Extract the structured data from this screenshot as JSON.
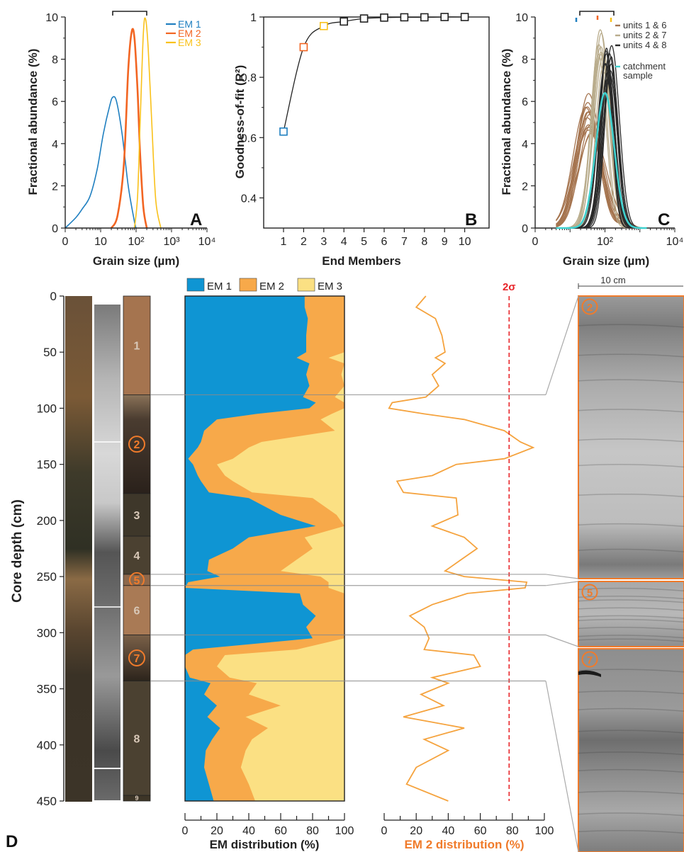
{
  "colors": {
    "em1": "#1f7fc0",
    "em2": "#f26522",
    "em3": "#f9c11a",
    "em1_fill": "#0f95d3",
    "em2_fill": "#f7a94a",
    "em3_fill": "#fbe083",
    "unit_brown": "#a5744f",
    "unit_dark": "#3e372a",
    "sigma": "#e8262b",
    "em2_curve": "#f5a33e",
    "frame_orange": "#f07b2b",
    "cyan": "#3fd1cf"
  },
  "chart_data": [
    {
      "panel": "A",
      "type": "line",
      "xscale": "log",
      "xlabel": "Grain size (µm)",
      "ylabel": "Fractional abundance (%)",
      "xlim": [
        1,
        10000
      ],
      "ylim": [
        0,
        10
      ],
      "xticks": [
        "0",
        "10",
        "10²",
        "10³",
        "10⁴"
      ],
      "yticks": [
        "0",
        "2",
        "4",
        "6",
        "8",
        "10"
      ],
      "series": [
        {
          "name": "EM 1",
          "x": [
            1,
            2,
            3,
            5,
            8,
            12,
            18,
            22,
            28,
            40,
            60,
            90,
            100
          ],
          "y": [
            0,
            0.5,
            0.9,
            1.5,
            2.8,
            4.5,
            5.8,
            6.2,
            6.0,
            4.5,
            2.0,
            0.3,
            0
          ]
        },
        {
          "name": "EM 2",
          "x": [
            20,
            30,
            45,
            60,
            75,
            90,
            110,
            130,
            160,
            200
          ],
          "y": [
            0,
            0.6,
            3.0,
            7.5,
            9.3,
            9.0,
            6.5,
            3.5,
            1.0,
            0
          ]
        },
        {
          "name": "EM 3",
          "x": [
            90,
            110,
            130,
            160,
            185,
            220,
            280,
            360,
            500
          ],
          "y": [
            0,
            1.5,
            5.0,
            9.2,
            9.9,
            8.5,
            4.8,
            1.3,
            0
          ]
        }
      ]
    },
    {
      "panel": "B",
      "type": "line",
      "xlabel": "End Members",
      "ylabel": "Goodness-of-fit (R²)",
      "xlim": [
        0,
        11
      ],
      "ylim": [
        0.3,
        1
      ],
      "yticks": [
        "0.4",
        "0.6",
        "0.8",
        "1"
      ],
      "x": [
        1,
        2,
        3,
        4,
        5,
        6,
        7,
        8,
        9,
        10
      ],
      "y": [
        0.62,
        0.9,
        0.97,
        0.985,
        0.995,
        0.998,
        0.999,
        0.999,
        1.0,
        1.0
      ],
      "highlight": {
        "1": "#1f7fc0",
        "2": "#f26522",
        "3": "#f9c11a"
      }
    },
    {
      "panel": "C",
      "type": "line",
      "xscale": "log",
      "xlabel": "Grain size (µm)",
      "ylabel": "Fractional abundance (%)",
      "xlim": [
        1,
        10000
      ],
      "ylim": [
        0,
        10
      ],
      "xticks": [
        "0",
        "10²",
        "10⁴"
      ],
      "yticks": [
        "0",
        "2",
        "4",
        "6",
        "8",
        "10"
      ],
      "legend": [
        "units 1 & 6",
        "units 2 & 7",
        "units 4 & 8",
        "catchment sample"
      ],
      "groups": [
        {
          "name": "units 1 & 6",
          "color": "#a5744f",
          "n": 14,
          "peak_x": 35,
          "peak_y_range": [
            4.4,
            6.4
          ],
          "width": 0.36
        },
        {
          "name": "units 2 & 7",
          "color": "#b9ac8c",
          "n": 10,
          "peak_x": 80,
          "peak_y_range": [
            7.2,
            9.5
          ],
          "width": 0.25
        },
        {
          "name": "units 4 & 8",
          "color": "#2a2a2a",
          "n": 14,
          "peak_x": 125,
          "peak_y_range": [
            7.0,
            8.7
          ],
          "width": 0.2
        },
        {
          "name": "catchment sample",
          "color": "#3fd1cf",
          "n": 1,
          "peak_x": 100,
          "peak_y_range": [
            6.4,
            6.4
          ],
          "width": 0.3
        }
      ]
    },
    {
      "panel": "D",
      "type": "area",
      "ylabel": "Core depth (cm)",
      "xlabel": "EM distribution (%)",
      "ylim": [
        0,
        450
      ],
      "xlim": [
        0,
        100
      ],
      "depth_ticks": [
        "0",
        "50",
        "100",
        "150",
        "200",
        "250",
        "300",
        "350",
        "400",
        "450"
      ],
      "pct_ticks": [
        "0",
        "20",
        "40",
        "60",
        "80",
        "100"
      ],
      "legend": [
        "EM 1",
        "EM 2",
        "EM 3"
      ],
      "depth": [
        0,
        10,
        20,
        35,
        50,
        55,
        60,
        70,
        80,
        90,
        95,
        100,
        105,
        110,
        120,
        130,
        135,
        145,
        150,
        160,
        165,
        175,
        180,
        195,
        205,
        215,
        225,
        235,
        245,
        250,
        255,
        260,
        265,
        275,
        285,
        295,
        305,
        315,
        320,
        330,
        340,
        345,
        355,
        365,
        375,
        385,
        395,
        405,
        420,
        435,
        450
      ],
      "em1": [
        75,
        75,
        77,
        76,
        76,
        70,
        78,
        76,
        78,
        74,
        82,
        78,
        45,
        20,
        12,
        10,
        8,
        2,
        5,
        8,
        10,
        15,
        40,
        60,
        82,
        40,
        30,
        15,
        14,
        22,
        2,
        0,
        72,
        74,
        82,
        76,
        80,
        5,
        0,
        0,
        3,
        16,
        12,
        20,
        14,
        22,
        17,
        13,
        12,
        15,
        18
      ],
      "em12": [
        100,
        100,
        100,
        100,
        100,
        90,
        100,
        98,
        100,
        94,
        100,
        100,
        92,
        85,
        94,
        48,
        40,
        30,
        20,
        25,
        30,
        42,
        80,
        95,
        100,
        75,
        80,
        70,
        60,
        85,
        90,
        90,
        100,
        100,
        100,
        100,
        100,
        70,
        25,
        20,
        28,
        45,
        40,
        60,
        38,
        52,
        42,
        38,
        35,
        40,
        44
      ],
      "em2_dist": [
        26,
        20,
        32,
        36,
        38,
        32,
        38,
        30,
        34,
        26,
        5,
        3,
        25,
        50,
        75,
        85,
        93,
        75,
        45,
        30,
        8,
        12,
        45,
        46,
        30,
        50,
        58,
        48,
        38,
        50,
        89,
        88,
        52,
        30,
        16,
        25,
        28,
        25,
        56,
        60,
        30,
        40,
        23,
        37,
        12,
        50,
        25,
        40,
        20,
        14,
        40
      ],
      "sigma_label": "2σ",
      "sigma_value": 78,
      "em2_xlabel": "EM 2 distribution (%)",
      "units": [
        {
          "label": "1",
          "top": 0,
          "bottom": 88,
          "color": "#a5744f",
          "circled": false
        },
        {
          "label": "2",
          "top": 88,
          "bottom": 176,
          "color": "#3a2e24",
          "circled": true
        },
        {
          "label": "3",
          "top": 176,
          "bottom": 214,
          "color": "#3e372a",
          "circled": false
        },
        {
          "label": "4",
          "top": 214,
          "bottom": 248,
          "color": "#4b4131",
          "circled": false
        },
        {
          "label": "5",
          "top": 248,
          "bottom": 258,
          "color": "#8d684b",
          "circled": true
        },
        {
          "label": "6",
          "top": 258,
          "bottom": 302,
          "color": "#a97a55",
          "circled": false
        },
        {
          "label": "7",
          "top": 302,
          "bottom": 343,
          "color": "#3b3026",
          "circled": true
        },
        {
          "label": "8",
          "top": 343,
          "bottom": 445,
          "color": "#4b4131",
          "circled": false
        },
        {
          "label": "9",
          "top": 445,
          "bottom": 450,
          "color": "#3d3527",
          "circled": false
        }
      ],
      "scale_bar_label": "10 cm",
      "photo_frames": [
        {
          "label": "2",
          "top_depth": 88,
          "bottom_depth": 258
        },
        {
          "label": "5",
          "top_depth": 248,
          "bottom_depth": 302
        },
        {
          "label": "7",
          "top_depth": 302,
          "bottom_depth": 450
        }
      ]
    }
  ],
  "panels": {
    "a": "A",
    "b": "B",
    "c": "C",
    "d": "D"
  }
}
